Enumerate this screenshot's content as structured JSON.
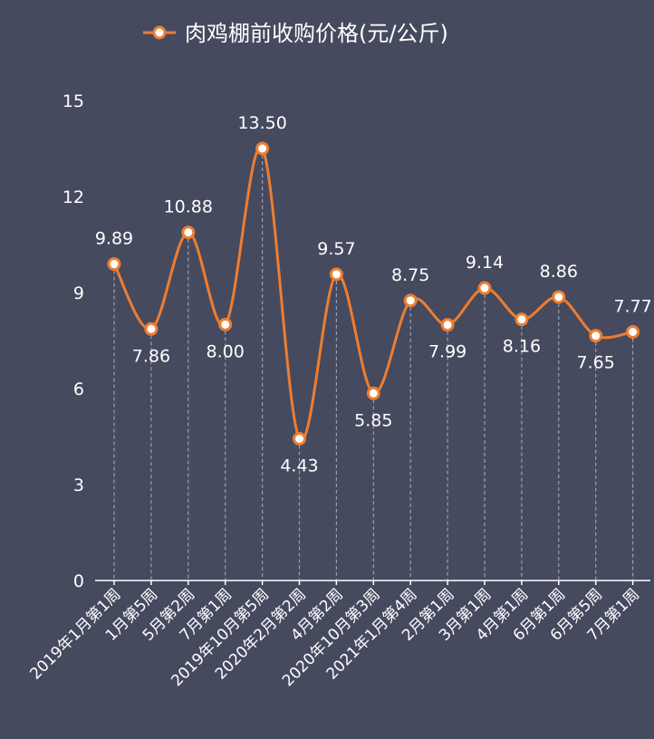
{
  "chart_data": {
    "type": "line",
    "title": "肉鸡棚前收购价格(元/公斤)",
    "legend": {
      "label": "肉鸡棚前收购价格(元/公斤)",
      "placement": "top-center"
    },
    "categories": [
      "2019年1月第1周",
      "1月第5周",
      "5月第2周",
      "7月第1周",
      "2019年10月第5周",
      "2020年2月第2周",
      "4月第2周",
      "2020年10月第3周",
      "2021年1月第4周",
      "2月第1周",
      "3月第1周",
      "4月第1周",
      "6月第1周",
      "6月第5周",
      "7月第1周"
    ],
    "values": [
      9.89,
      7.86,
      10.88,
      8.0,
      13.5,
      4.43,
      9.57,
      5.85,
      8.75,
      7.99,
      9.14,
      8.16,
      8.86,
      7.65,
      7.77
    ],
    "data_labels": [
      "9.89",
      "7.86",
      "10.88",
      "8.00",
      "13.50",
      "4.43",
      "9.57",
      "5.85",
      "8.75",
      "7.99",
      "9.14",
      "8.16",
      "8.86",
      "7.65",
      "7.77"
    ],
    "label_above": [
      true,
      false,
      true,
      false,
      true,
      false,
      true,
      false,
      true,
      false,
      true,
      false,
      true,
      false,
      true
    ],
    "ylim": [
      0,
      15
    ],
    "yticks": [
      "0",
      "3",
      "6",
      "9",
      "12",
      "15"
    ],
    "ytick_values": [
      0,
      3,
      6,
      9,
      12,
      15
    ],
    "xlabel": "",
    "ylabel": "",
    "smooth": true,
    "drop_lines": true,
    "colors": {
      "background": "#454a5f",
      "line": "#ee7d31",
      "marker_fill": "#ffffff",
      "text": "#ffffff",
      "axis": "#ffffff",
      "drop_line": "#9aa0b0"
    }
  }
}
